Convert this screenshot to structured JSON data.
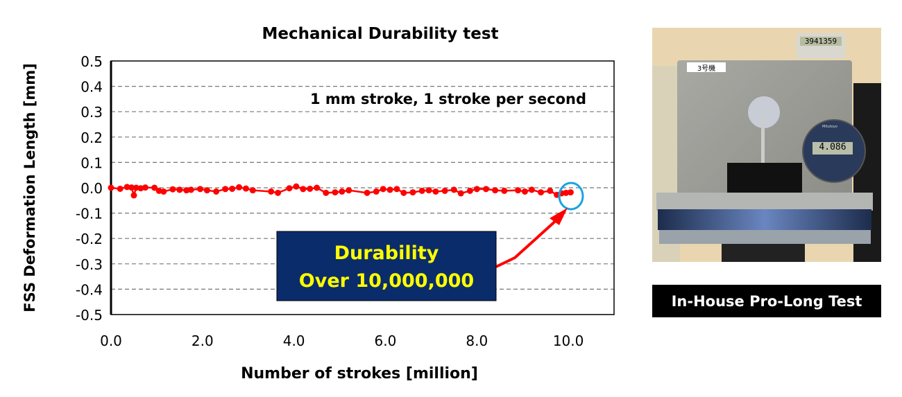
{
  "chart_data": {
    "type": "scatter",
    "title": "Mechanical Durability test",
    "xlabel": "Number of strokes [million]",
    "ylabel": "FSS  Deformation Length [mm]",
    "xlim": [
      0,
      11
    ],
    "ylim": [
      -0.5,
      0.5
    ],
    "xticks": [
      "0.0",
      "2.0",
      "4.0",
      "6.0",
      "8.0",
      "10.0"
    ],
    "xtick_values": [
      0,
      2,
      4,
      6,
      8,
      10
    ],
    "yticks": [
      "0.5",
      "0.4",
      "0.3",
      "0.2",
      "0.1",
      "0.0",
      "-0.1",
      "-0.2",
      "-0.3",
      "-0.4",
      "-0.5"
    ],
    "ytick_values": [
      0.5,
      0.4,
      0.3,
      0.2,
      0.1,
      0,
      -0.1,
      -0.2,
      -0.3,
      -0.4,
      -0.5
    ],
    "grid": "horizontal dashed",
    "series_color": "#ff0000",
    "annotation_subtitle": "1 mm stroke, 1 stroke per second",
    "callout": {
      "line1": "Durability",
      "line2": "Over 10,000,000",
      "bg": "#0b2c6b",
      "text_color": "#ffff00"
    },
    "highlight_circle_color": "#1aa3e0",
    "x": [
      0,
      0.2,
      0.35,
      0.45,
      0.5,
      0.55,
      0.65,
      0.75,
      0.95,
      1.05,
      1.15,
      1.35,
      1.5,
      1.65,
      1.75,
      1.95,
      2.1,
      2.3,
      2.5,
      2.65,
      2.8,
      2.95,
      3.1,
      3.5,
      3.65,
      3.9,
      4.05,
      4.2,
      4.35,
      4.5,
      4.7,
      4.9,
      5.05,
      5.2,
      5.6,
      5.8,
      5.95,
      6.1,
      6.25,
      6.4,
      6.6,
      6.8,
      6.95,
      7.1,
      7.3,
      7.5,
      7.65,
      7.85,
      8.0,
      8.2,
      8.4,
      8.6,
      8.9,
      9.05,
      9.2,
      9.4,
      9.6,
      9.75,
      9.85,
      9.95,
      10.05
    ],
    "y": [
      0,
      -0.004,
      0.003,
      0.001,
      -0.03,
      0,
      -0.002,
      0.001,
      0,
      -0.012,
      -0.015,
      -0.006,
      -0.008,
      -0.01,
      -0.008,
      -0.005,
      -0.01,
      -0.015,
      -0.005,
      -0.004,
      0.002,
      -0.003,
      -0.01,
      -0.015,
      -0.02,
      -0.002,
      0.005,
      -0.005,
      -0.004,
      0,
      -0.02,
      -0.018,
      -0.015,
      -0.01,
      -0.02,
      -0.015,
      -0.005,
      -0.008,
      -0.005,
      -0.02,
      -0.018,
      -0.012,
      -0.01,
      -0.015,
      -0.012,
      -0.008,
      -0.022,
      -0.012,
      -0.005,
      -0.005,
      -0.01,
      -0.012,
      -0.01,
      -0.015,
      -0.008,
      -0.018,
      -0.012,
      -0.028,
      -0.022,
      -0.02,
      -0.018
    ]
  },
  "photo": {
    "machine_label": "3号機",
    "counter_display": "3941359",
    "gauge_display": "4.086",
    "gauge_brand": "Mitutoyo"
  },
  "caption": "In-House Pro-Long Test"
}
